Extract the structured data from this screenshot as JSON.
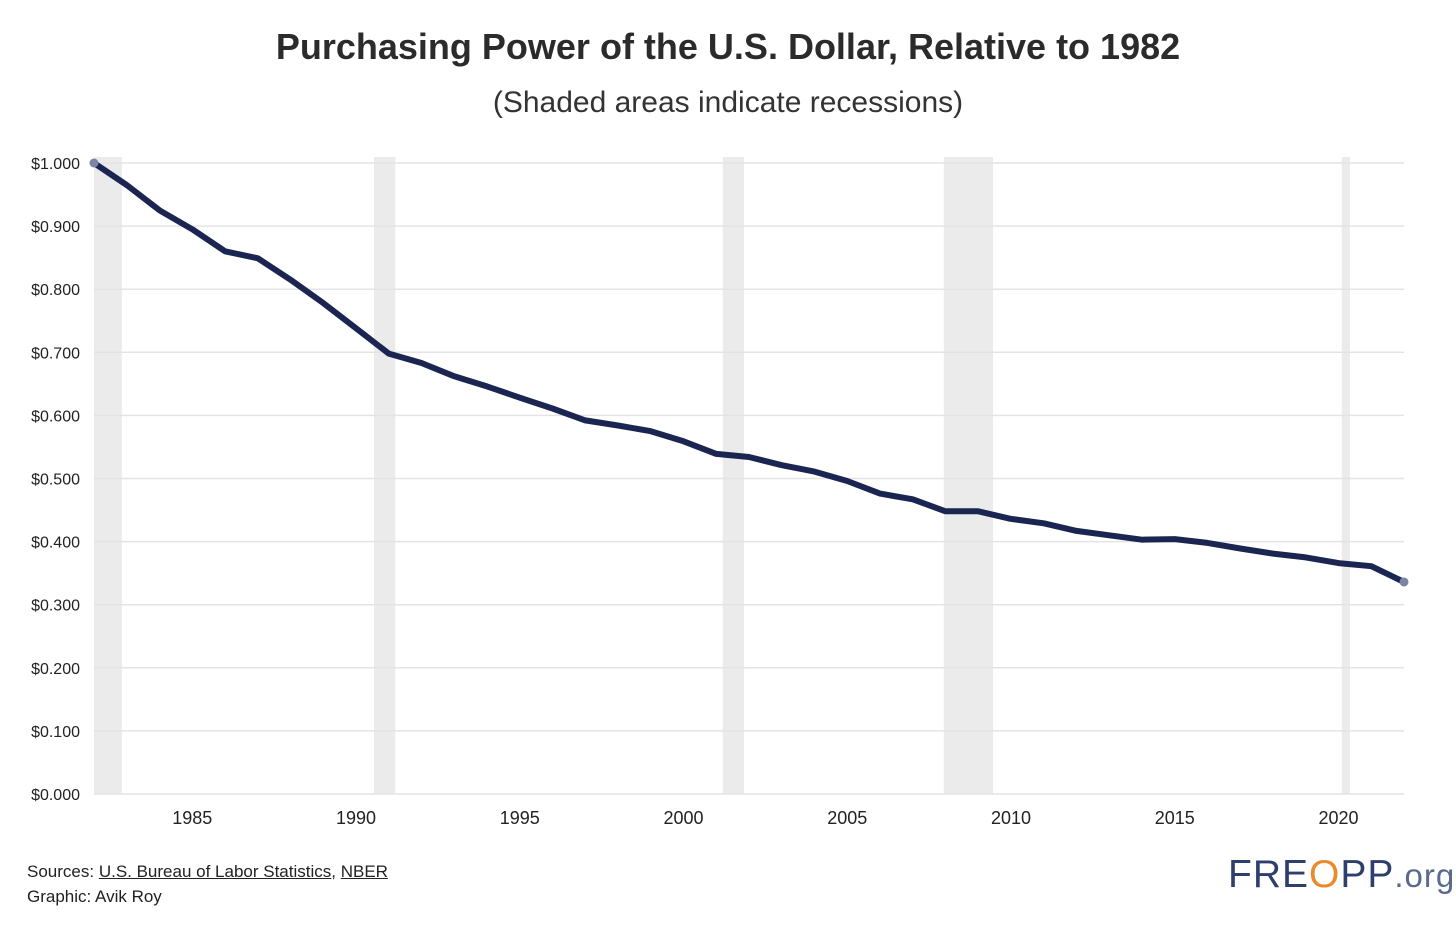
{
  "header": {
    "title": "Purchasing Power of the U.S. Dollar, Relative to 1982",
    "subtitle": "(Shaded areas indicate recessions)"
  },
  "footer": {
    "sources_prefix": "Sources: ",
    "source_links": [
      "U.S. Bureau of Labor Statistics",
      "NBER"
    ],
    "separator": ", ",
    "credit": "Graphic: Avik Roy"
  },
  "logo": {
    "part1": "FRE",
    "part2": "O",
    "part3": "PP",
    "part4": ".org"
  },
  "colors": {
    "line": "#1b2551",
    "recession": "#ebebeb",
    "grid": "#e4e4e4",
    "logo": "#2e3f6e",
    "logo_accent": "#e98a2c"
  },
  "chart_data": {
    "type": "line",
    "title": "Purchasing Power of the U.S. Dollar, Relative to 1982",
    "subtitle": "(Shaded areas indicate recessions)",
    "xlabel": "",
    "ylabel": "",
    "xlim": [
      1982,
      2022
    ],
    "ylim": [
      0,
      1.0
    ],
    "x_ticks": [
      1985,
      1990,
      1995,
      2000,
      2005,
      2010,
      2015,
      2020
    ],
    "y_ticks": [
      0,
      0.1,
      0.2,
      0.3,
      0.4,
      0.5,
      0.6,
      0.7,
      0.8,
      0.9,
      1.0
    ],
    "y_tick_labels": [
      "$0.000",
      "$0.100",
      "$0.200",
      "$0.300",
      "$0.400",
      "$0.500",
      "$0.600",
      "$0.700",
      "$0.800",
      "$0.900",
      "$1.000"
    ],
    "grid": true,
    "recessions": [
      [
        1982.0,
        1982.85
      ],
      [
        1990.55,
        1991.2
      ],
      [
        2001.2,
        2001.85
      ],
      [
        2007.95,
        2009.45
      ],
      [
        2020.1,
        2020.35
      ]
    ],
    "series": [
      {
        "name": "Purchasing Power of the U.S. Dollar",
        "x": [
          1982,
          1983,
          1984,
          1985,
          1986,
          1987,
          1988,
          1989,
          1990,
          1991,
          1992,
          1993,
          1994,
          1995,
          1996,
          1997,
          1998,
          1999,
          2000,
          2001,
          2002,
          2003,
          2004,
          2005,
          2006,
          2007,
          2008,
          2009,
          2010,
          2011,
          2012,
          2013,
          2014,
          2015,
          2016,
          2017,
          2018,
          2019,
          2020,
          2021,
          2022
        ],
        "values": [
          1.0,
          0.965,
          0.925,
          0.895,
          0.86,
          0.849,
          0.815,
          0.778,
          0.738,
          0.698,
          0.683,
          0.662,
          0.646,
          0.628,
          0.611,
          0.592,
          0.584,
          0.575,
          0.559,
          0.539,
          0.534,
          0.521,
          0.511,
          0.496,
          0.476,
          0.467,
          0.448,
          0.448,
          0.436,
          0.429,
          0.417,
          0.41,
          0.403,
          0.404,
          0.398,
          0.389,
          0.381,
          0.375,
          0.366,
          0.361,
          0.336
        ]
      }
    ]
  }
}
